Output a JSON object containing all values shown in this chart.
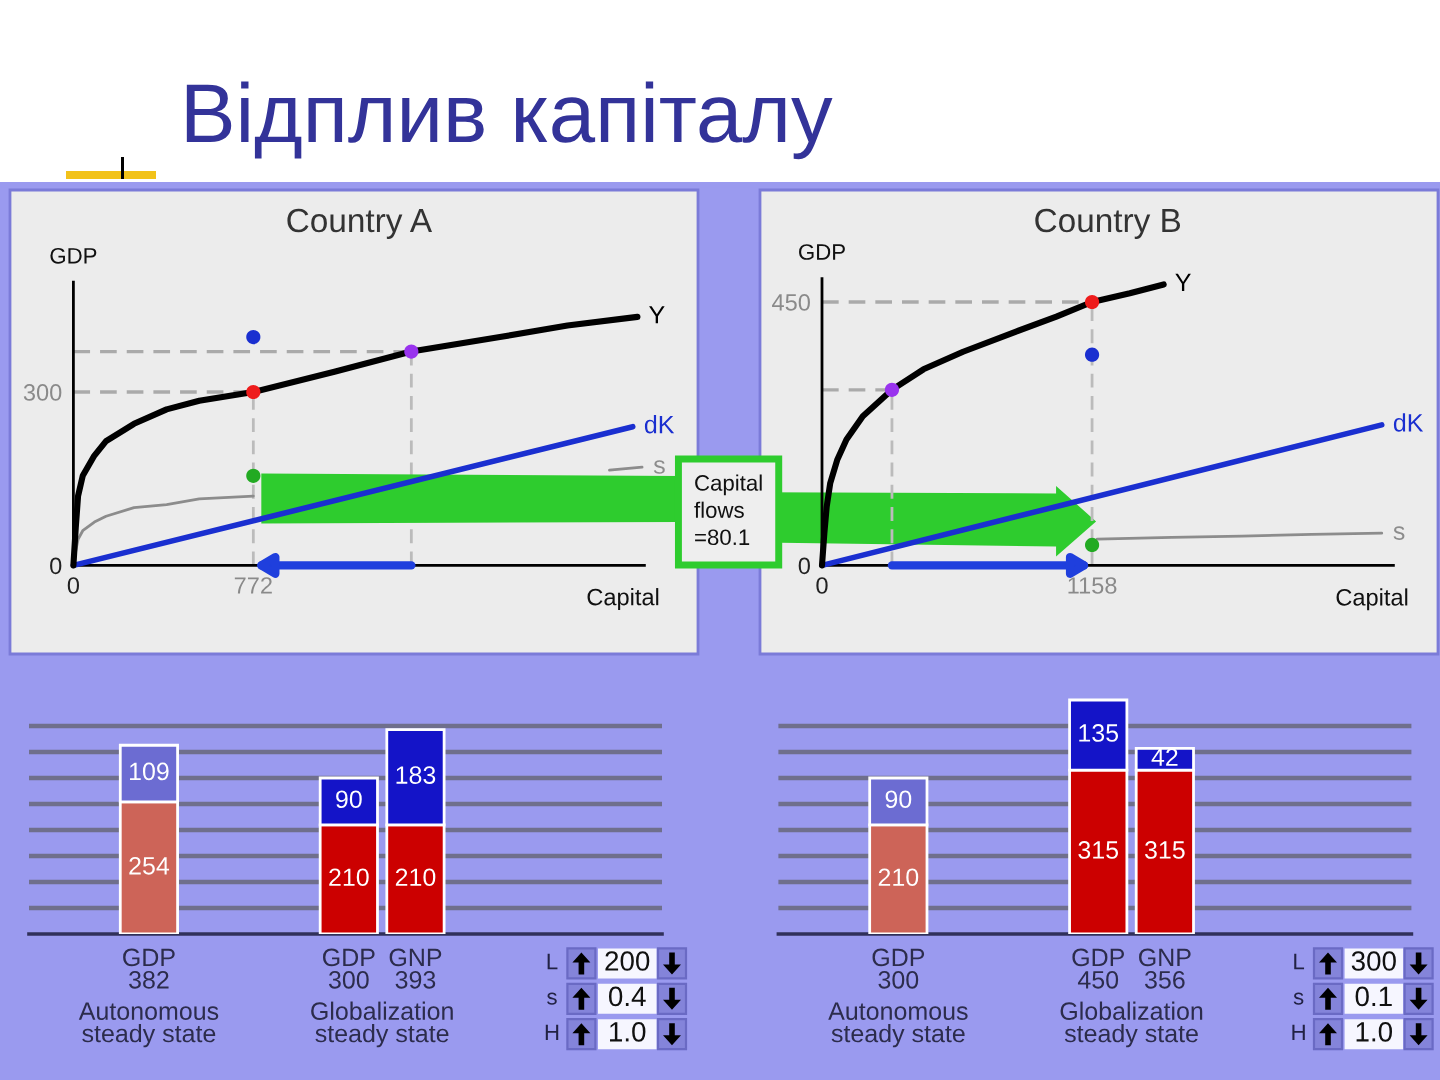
{
  "chart_data": [
    {
      "type": "other",
      "title": "Відплив капіталу"
    },
    {
      "type": "line",
      "title": "Country A",
      "xlabel": "Capital",
      "ylabel": "GDP",
      "xlim": [
        0,
        2450
      ],
      "ylim": [
        0,
        490
      ],
      "xticks": [
        0,
        772
      ],
      "yticks": [
        0,
        300
      ],
      "series": [
        {
          "name": "Y",
          "color": "#000000",
          "x": [
            0,
            10,
            20,
            40,
            90,
            140,
            260,
            400,
            540,
            772,
            1120,
            1450,
            1830,
            2120,
            2420
          ],
          "values": [
            0,
            65,
            120,
            155,
            190,
            215,
            245,
            270,
            285,
            300,
            335,
            370,
            395,
            415,
            430
          ]
        },
        {
          "name": "dK",
          "color": "#1a2fd0",
          "x": [
            0,
            2400
          ],
          "values": [
            0,
            240
          ]
        },
        {
          "name": "s",
          "color": "#8c8c8c",
          "x": [
            0,
            10,
            20,
            40,
            90,
            140,
            260,
            400,
            540,
            772,
            1500,
            2300,
            2440
          ],
          "values": [
            0,
            25,
            45,
            60,
            75,
            85,
            100,
            105,
            115,
            120,
            null,
            165,
            170
          ]
        },
        {
          "type": "scatter",
          "marker": "circle",
          "color": "#ee1c1c",
          "x": [
            772
          ],
          "values": [
            300
          ]
        },
        {
          "type": "scatter",
          "marker": "circle",
          "color": "#9933ee",
          "x": [
            1450
          ],
          "values": [
            370
          ]
        },
        {
          "type": "scatter",
          "marker": "circle",
          "color": "#1a2fd0",
          "x": [
            772
          ],
          "values": [
            395
          ]
        },
        {
          "type": "scatter",
          "marker": "circle",
          "color": "#22aa22",
          "x": [
            772
          ],
          "values": [
            155
          ]
        }
      ],
      "ref_lines": [
        {
          "axis": "y",
          "value": 300,
          "color": "#aaaaaa",
          "line_style": "dashed"
        },
        {
          "axis": "y",
          "value": 370,
          "color": "#aaaaaa",
          "line_style": "dashed"
        },
        {
          "axis": "x",
          "value": 772,
          "color": "#bbbbbb",
          "line_style": "dashed"
        },
        {
          "axis": "x",
          "value": 1450,
          "color": "#bbbbbb",
          "line_style": "dashed"
        }
      ],
      "annotations": [
        "Capital\nflows\n=80.1"
      ]
    },
    {
      "type": "line",
      "title": "Country B",
      "xlabel": "Capital",
      "ylabel": "GDP",
      "xlim": [
        0,
        2450
      ],
      "ylim": [
        0,
        490
      ],
      "xticks": [
        0,
        1158
      ],
      "yticks": [
        0,
        450
      ],
      "series": [
        {
          "name": "Y",
          "color": "#000000",
          "x": [
            0,
            10,
            20,
            35,
            65,
            105,
            175,
            300,
            435,
            605,
            835,
            1005,
            1158,
            1320,
            1465
          ],
          "values": [
            0,
            55,
            100,
            140,
            180,
            215,
            255,
            300,
            335,
            365,
            400,
            425,
            450,
            465,
            480
          ]
        },
        {
          "name": "dK",
          "color": "#1a2fd0",
          "x": [
            0,
            2400
          ],
          "values": [
            0,
            240
          ]
        },
        {
          "name": "s",
          "color": "#8c8c8c",
          "x": [
            1180,
            1500,
            1800,
            2100,
            2400
          ],
          "values": [
            45,
            48,
            50,
            53,
            55
          ]
        },
        {
          "type": "scatter",
          "marker": "circle",
          "color": "#ee1c1c",
          "x": [
            1158
          ],
          "values": [
            450
          ]
        },
        {
          "type": "scatter",
          "marker": "circle",
          "color": "#9933ee",
          "x": [
            300
          ],
          "values": [
            300
          ]
        },
        {
          "type": "scatter",
          "marker": "circle",
          "color": "#1a2fd0",
          "x": [
            1158
          ],
          "values": [
            360
          ]
        },
        {
          "type": "scatter",
          "marker": "circle",
          "color": "#22aa22",
          "x": [
            1158
          ],
          "values": [
            35
          ]
        }
      ],
      "ref_lines": [
        {
          "axis": "y",
          "value": 450,
          "color": "#aaaaaa",
          "line_style": "dashed"
        },
        {
          "axis": "y",
          "value": 300,
          "color": "#aaaaaa",
          "line_style": "dashed"
        },
        {
          "axis": "x",
          "value": 1158,
          "color": "#bbbbbb",
          "line_style": "dashed"
        },
        {
          "axis": "x",
          "value": 300,
          "color": "#bbbbbb",
          "line_style": "dashed"
        }
      ]
    },
    {
      "type": "bar",
      "stacked": true,
      "data_labels": true,
      "grid": "y",
      "tick_labels": "x",
      "yticks": [
        {
          "value": 50,
          "label": null
        },
        {
          "value": 100,
          "label": null
        },
        {
          "value": 150,
          "label": null
        },
        {
          "value": 200,
          "label": null
        },
        {
          "value": 250,
          "label": null
        },
        {
          "value": 300,
          "label": null
        },
        {
          "value": 350,
          "label": null
        },
        {
          "value": 400,
          "label": null
        }
      ],
      "categories": [
        "GDP\n382",
        null,
        null,
        "GDP\n300",
        "GNP\n393"
      ],
      "series": [
        {
          "colors": [
            "#cd6458",
            null,
            null,
            "#cc0000",
            "#cc0000"
          ],
          "values": [
            254,
            null,
            null,
            210,
            210
          ]
        },
        {
          "colors": [
            "#6c6cd2",
            null,
            null,
            "#1414c8",
            "#1414c8"
          ],
          "values": [
            109,
            null,
            null,
            90,
            183
          ]
        }
      ],
      "annotations": [
        "Autonomous\nsteady state",
        "Globalization\nsteady state"
      ]
    },
    {
      "type": "other",
      "annotations": [
        "L",
        "200",
        "s",
        "0.4",
        "H",
        "1.0"
      ]
    },
    {
      "type": "bar",
      "stacked": true,
      "data_labels": true,
      "grid": "y",
      "tick_labels": "x",
      "yticks": [
        {
          "value": 50,
          "label": null
        },
        {
          "value": 100,
          "label": null
        },
        {
          "value": 150,
          "label": null
        },
        {
          "value": 200,
          "label": null
        },
        {
          "value": 250,
          "label": null
        },
        {
          "value": 300,
          "label": null
        },
        {
          "value": 350,
          "label": null
        },
        {
          "value": 400,
          "label": null
        }
      ],
      "categories": [
        "GDP\n300",
        null,
        null,
        "GDP\n450",
        "GNP\n356"
      ],
      "series": [
        {
          "colors": [
            "#cd6458",
            null,
            null,
            "#cc0000",
            "#cc0000"
          ],
          "values": [
            210,
            null,
            null,
            315,
            315
          ]
        },
        {
          "colors": [
            "#6c6cd2",
            null,
            null,
            "#1414c8",
            "#1414c8"
          ],
          "values": [
            90,
            null,
            null,
            135,
            42
          ]
        }
      ],
      "annotations": [
        "Autonomous\nsteady state",
        "Globalization\nsteady state"
      ]
    },
    {
      "type": "other",
      "annotations": [
        "L",
        "300",
        "s",
        "0.1",
        "H",
        "1.0"
      ]
    }
  ]
}
